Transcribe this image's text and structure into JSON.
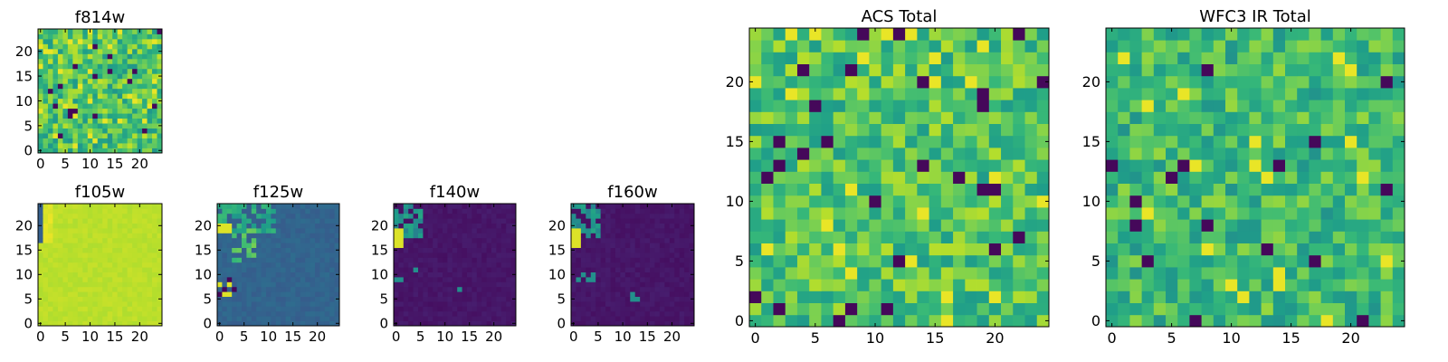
{
  "chart_data": [
    {
      "type": "heatmap",
      "title": "f814w",
      "xlabel": "",
      "ylabel": "",
      "xticks": [
        0,
        5,
        10,
        15,
        20
      ],
      "yticks": [
        0,
        5,
        10,
        15,
        20
      ],
      "xlim": [
        -0.5,
        24.5
      ],
      "ylim": [
        -0.5,
        24.5
      ],
      "grid": 25,
      "colormap": "viridis",
      "pattern": "speckle",
      "base": 0.72,
      "spread": 0.42,
      "seed": 11
    },
    {
      "type": "heatmap",
      "title": "f105w",
      "xlabel": "",
      "ylabel": "",
      "xticks": [
        0,
        5,
        10,
        15,
        20
      ],
      "yticks": [
        0,
        5,
        10,
        15,
        20
      ],
      "xlim": [
        -0.5,
        24.5
      ],
      "ylim": [
        -0.5,
        24.5
      ],
      "grid": 25,
      "colormap": "viridis",
      "pattern": "flat_high",
      "base": 0.9,
      "spread": 0.04,
      "seed": 23
    },
    {
      "type": "heatmap",
      "title": "f125w",
      "xlabel": "",
      "ylabel": "",
      "xticks": [
        0,
        5,
        10,
        15,
        20
      ],
      "yticks": [
        0,
        5,
        10,
        15,
        20
      ],
      "xlim": [
        -0.5,
        24.5
      ],
      "ylim": [
        -0.5,
        24.5
      ],
      "grid": 25,
      "colormap": "viridis",
      "pattern": "blob_mid",
      "base": 0.32,
      "spread": 0.06,
      "seed": 37
    },
    {
      "type": "heatmap",
      "title": "f140w",
      "xlabel": "",
      "ylabel": "",
      "xticks": [
        0,
        5,
        10,
        15,
        20
      ],
      "yticks": [
        0,
        5,
        10,
        15,
        20
      ],
      "xlim": [
        -0.5,
        24.5
      ],
      "ylim": [
        -0.5,
        24.5
      ],
      "grid": 25,
      "colormap": "viridis",
      "pattern": "blob_low",
      "base": 0.06,
      "spread": 0.04,
      "seed": 41
    },
    {
      "type": "heatmap",
      "title": "f160w",
      "xlabel": "",
      "ylabel": "",
      "xticks": [
        0,
        5,
        10,
        15,
        20
      ],
      "yticks": [
        0,
        5,
        10,
        15,
        20
      ],
      "xlim": [
        -0.5,
        24.5
      ],
      "ylim": [
        -0.5,
        24.5
      ],
      "grid": 25,
      "colormap": "viridis",
      "pattern": "blob_low",
      "base": 0.06,
      "spread": 0.04,
      "seed": 53
    },
    {
      "type": "heatmap",
      "title": "ACS Total",
      "xlabel": "",
      "ylabel": "",
      "xticks": [
        0,
        5,
        10,
        15,
        20
      ],
      "yticks": [
        0,
        5,
        10,
        15,
        20
      ],
      "xlim": [
        -0.5,
        24.5
      ],
      "ylim": [
        -0.5,
        24.5
      ],
      "grid": 25,
      "colormap": "viridis",
      "pattern": "speckle",
      "base": 0.72,
      "spread": 0.38,
      "seed": 67
    },
    {
      "type": "heatmap",
      "title": "WFC3 IR Total",
      "xlabel": "",
      "ylabel": "",
      "xticks": [
        0,
        5,
        10,
        15,
        20
      ],
      "yticks": [
        0,
        5,
        10,
        15,
        20
      ],
      "xlim": [
        -0.5,
        24.5
      ],
      "ylim": [
        -0.5,
        24.5
      ],
      "grid": 25,
      "colormap": "viridis",
      "pattern": "speckle",
      "base": 0.68,
      "spread": 0.36,
      "seed": 79
    }
  ]
}
